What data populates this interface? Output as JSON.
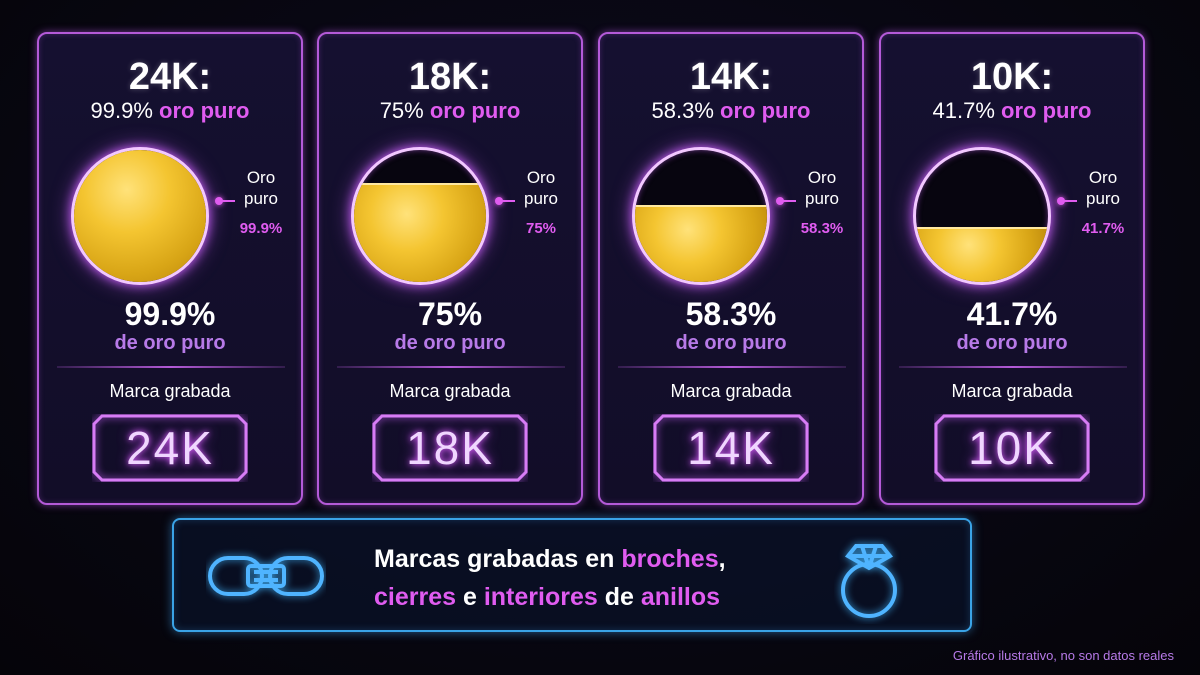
{
  "cards": [
    {
      "karat": "24K:",
      "purity_value": "99.9%",
      "purity_text": "oro puro",
      "side_label_1": "Oro",
      "side_label_2": "puro",
      "side_pct": "99.9%",
      "big_pct": "99.9%",
      "sub_text": "de oro puro",
      "mark_label": "Marca grabada",
      "stamp": "24K",
      "fill_fraction": 1.0
    },
    {
      "karat": "18K:",
      "purity_value": "75%",
      "purity_text": "oro puro",
      "side_label_1": "Oro",
      "side_label_2": "puro",
      "side_pct": "75%",
      "big_pct": "75%",
      "sub_text": "de oro puro",
      "mark_label": "Marca grabada",
      "stamp": "18K",
      "fill_fraction": 0.75
    },
    {
      "karat": "14K:",
      "purity_value": "58.3%",
      "purity_text": "oro puro",
      "side_label_1": "Oro",
      "side_label_2": "puro",
      "side_pct": "58.3%",
      "big_pct": "58.3%",
      "sub_text": "de oro puro",
      "mark_label": "Marca grabada",
      "stamp": "14K",
      "fill_fraction": 0.583
    },
    {
      "karat": "10K:",
      "purity_value": "41.7%",
      "purity_text": "oro puro",
      "side_label_1": "Oro",
      "side_label_2": "puro",
      "side_pct": "41.7%",
      "big_pct": "41.7%",
      "sub_text": "de oro puro",
      "mark_label": "Marca grabada",
      "stamp": "10K",
      "fill_fraction": 0.417
    }
  ],
  "banner": {
    "line1_a": "Marcas grabadas en ",
    "line1_accent": "broches",
    "line1_b": ",",
    "line2_accent1": "cierres",
    "line2_a": " e ",
    "line2_accent2": "interiores",
    "line2_b": " de ",
    "line2_accent3": "anillos",
    "left_icon": "chain-link-icon",
    "right_icon": "ring-icon"
  },
  "footnote": "Gráfico ilustrativo, no son datos reales",
  "colors": {
    "accent": "#e05cf0",
    "card_border": "#b45ad8",
    "banner_border": "#3aa3e6",
    "gold": "#f4c531",
    "background": "#07060f"
  }
}
